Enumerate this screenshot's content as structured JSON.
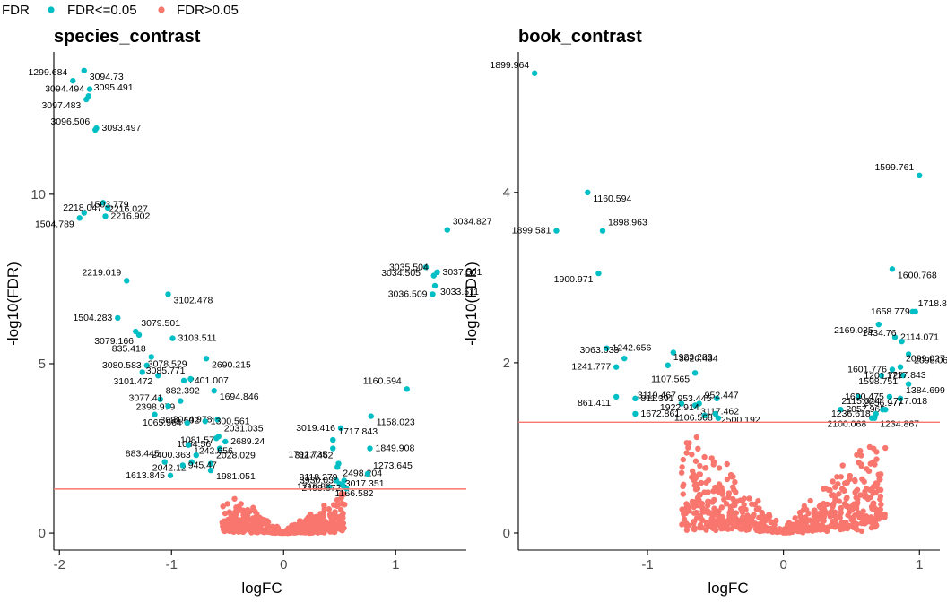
{
  "legend": {
    "title": "FDR",
    "items": [
      {
        "label": "FDR<=0.05",
        "color": "#00BFC4"
      },
      {
        "label": "FDR>0.05",
        "color": "#F8766D"
      }
    ]
  },
  "colors": {
    "sig": "#00BFC4",
    "nonsig": "#F8766D",
    "threshold": "#F8766D"
  },
  "chart_data": [
    {
      "type": "scatter",
      "title": "species_contrast",
      "xlabel": "logFC",
      "ylabel": "-log10(FDR)",
      "xlim": [
        -2.05,
        1.63
      ],
      "ylim": [
        -0.5,
        14.2
      ],
      "xticks": [
        -2,
        -1,
        0,
        1
      ],
      "yticks": [
        0,
        5,
        10
      ],
      "threshold_y": 1.301,
      "points": [
        {
          "x": -1.88,
          "y": 13.35,
          "label": "1299.684"
        },
        {
          "x": -1.78,
          "y": 13.65,
          "label": "3094.73"
        },
        {
          "x": -1.73,
          "y": 13.1,
          "label": "3094.494"
        },
        {
          "x": -1.74,
          "y": 12.9,
          "label": "3095.491"
        },
        {
          "x": -1.76,
          "y": 12.8,
          "label": "3097.483"
        },
        {
          "x": -1.67,
          "y": 11.95,
          "label": "3093.497"
        },
        {
          "x": -1.68,
          "y": 11.9,
          "label": "3096.506"
        },
        {
          "x": -1.61,
          "y": 9.75,
          "label": "2216.027"
        },
        {
          "x": -1.57,
          "y": 9.6,
          "label": "2218.047"
        },
        {
          "x": -1.78,
          "y": 9.45,
          "label": "1503.779"
        },
        {
          "x": -1.82,
          "y": 9.3,
          "label": "1504.789"
        },
        {
          "x": -1.59,
          "y": 9.35,
          "label": "2216.902"
        },
        {
          "x": -1.4,
          "y": 7.45,
          "label": "2219.019"
        },
        {
          "x": -1.03,
          "y": 7.05,
          "label": "3102.478"
        },
        {
          "x": -1.48,
          "y": 6.35,
          "label": "1504.283"
        },
        {
          "x": -1.32,
          "y": 5.95,
          "label": "3079.501"
        },
        {
          "x": -1.29,
          "y": 5.85,
          "label": "3079.166"
        },
        {
          "x": -0.99,
          "y": 5.75,
          "label": "3103.511"
        },
        {
          "x": -1.18,
          "y": 5.2,
          "label": "835.418"
        },
        {
          "x": -0.69,
          "y": 5.15,
          "label": "2690.215"
        },
        {
          "x": -1.22,
          "y": 4.95,
          "label": "3080.583"
        },
        {
          "x": -1.26,
          "y": 4.75,
          "label": "3078.529"
        },
        {
          "x": -1.12,
          "y": 4.65,
          "label": "3101.472"
        },
        {
          "x": -0.89,
          "y": 4.5,
          "label": "2401.007"
        },
        {
          "x": -0.83,
          "y": 4.55,
          "label": "3085.771"
        },
        {
          "x": -0.62,
          "y": 4.2,
          "label": "1694.846"
        },
        {
          "x": -0.59,
          "y": 3.35,
          "label": "3044.978"
        },
        {
          "x": -1.1,
          "y": 3.95,
          "label": "882.392"
        },
        {
          "x": -0.92,
          "y": 3.9,
          "label": "2398.979"
        },
        {
          "x": -0.7,
          "y": 3.3,
          "label": "1300.561"
        },
        {
          "x": -1.03,
          "y": 3.75,
          "label": "3077.41"
        },
        {
          "x": -1.15,
          "y": 3.5,
          "label": "3081.502"
        },
        {
          "x": -0.86,
          "y": 3.25,
          "label": "1065.564"
        },
        {
          "x": -0.58,
          "y": 2.85,
          "label": "2031.035"
        },
        {
          "x": -0.6,
          "y": 2.8,
          "label": "1064.56"
        },
        {
          "x": -0.52,
          "y": 2.7,
          "label": "2689.24"
        },
        {
          "x": -0.57,
          "y": 2.5,
          "label": "1081.57"
        },
        {
          "x": -0.85,
          "y": 2.6,
          "label": "1242.656"
        },
        {
          "x": -0.78,
          "y": 2.3,
          "label": "2400.363"
        },
        {
          "x": -0.65,
          "y": 2.05,
          "label": "2028.029"
        },
        {
          "x": -0.82,
          "y": 2.1,
          "label": "2042.12"
        },
        {
          "x": -0.9,
          "y": 2.0,
          "label": "945.47"
        },
        {
          "x": -1.06,
          "y": 2.1,
          "label": "883.445"
        },
        {
          "x": -0.65,
          "y": 1.85,
          "label": "1981.051"
        },
        {
          "x": -1.01,
          "y": 1.7,
          "label": "1613.845"
        },
        {
          "x": 1.1,
          "y": 4.25,
          "label": "1160.594"
        },
        {
          "x": 0.78,
          "y": 3.45,
          "label": "1158.023"
        },
        {
          "x": 0.51,
          "y": 3.1,
          "label": "3019.416"
        },
        {
          "x": 0.44,
          "y": 2.75,
          "label": "1717.843"
        },
        {
          "x": 0.44,
          "y": 2.5,
          "label": "1792.735"
        },
        {
          "x": 0.77,
          "y": 2.5,
          "label": "1849.908"
        },
        {
          "x": 0.49,
          "y": 2.05,
          "label": "3117.462"
        },
        {
          "x": 0.48,
          "y": 1.95,
          "label": "2498.204"
        },
        {
          "x": 0.54,
          "y": 1.55,
          "label": "3930.035"
        },
        {
          "x": 0.75,
          "y": 1.75,
          "label": "1273.645"
        },
        {
          "x": 0.47,
          "y": 1.55,
          "label": "1718.82"
        },
        {
          "x": 0.5,
          "y": 1.45,
          "label": "3017.351"
        },
        {
          "x": 0.53,
          "y": 1.4,
          "label": "3118.279"
        },
        {
          "x": 0.41,
          "y": 1.35,
          "label": "1166.582"
        },
        {
          "x": 0.56,
          "y": 1.32,
          "label": "2499.672"
        },
        {
          "x": 1.46,
          "y": 8.95,
          "label": "3034.827"
        },
        {
          "x": 1.27,
          "y": 7.85,
          "label": "3034.505"
        },
        {
          "x": 1.37,
          "y": 7.7,
          "label": "3037.501"
        },
        {
          "x": 1.34,
          "y": 7.6,
          "label": "3035.504"
        },
        {
          "x": 1.35,
          "y": 7.3,
          "label": "3033.511"
        },
        {
          "x": 1.33,
          "y": 7.05,
          "label": "3036.509"
        }
      ]
    },
    {
      "type": "scatter",
      "title": "book_contrast",
      "xlabel": "logFC",
      "ylabel": "-log10(FDR)",
      "xlim": [
        -1.95,
        1.15
      ],
      "ylim": [
        -0.2,
        5.65
      ],
      "xticks": [
        -1,
        0,
        1
      ],
      "yticks": [
        0,
        2,
        4
      ],
      "threshold_y": 1.301,
      "points": [
        {
          "x": -1.83,
          "y": 5.4,
          "label": "1899.964"
        },
        {
          "x": -1.44,
          "y": 4.0,
          "label": "1160.594"
        },
        {
          "x": -1.67,
          "y": 3.55,
          "label": "1899.581"
        },
        {
          "x": -1.33,
          "y": 3.55,
          "label": "1898.963"
        },
        {
          "x": -1.36,
          "y": 3.05,
          "label": "1900.971"
        },
        {
          "x": -1.3,
          "y": 2.17,
          "label": "1242.656"
        },
        {
          "x": -1.17,
          "y": 2.05,
          "label": "3063.033"
        },
        {
          "x": -0.81,
          "y": 2.12,
          "label": "3020.434"
        },
        {
          "x": -1.23,
          "y": 1.95,
          "label": "1241.777"
        },
        {
          "x": -0.85,
          "y": 1.97,
          "label": "1923.283"
        },
        {
          "x": -0.65,
          "y": 1.88,
          "label": "1107.565"
        },
        {
          "x": -1.09,
          "y": 1.58,
          "label": "811.391"
        },
        {
          "x": -0.75,
          "y": 1.52,
          "label": "3119.467"
        },
        {
          "x": -0.65,
          "y": 1.5,
          "label": "3117.462"
        },
        {
          "x": -0.49,
          "y": 1.58,
          "label": "953.445"
        },
        {
          "x": -0.62,
          "y": 1.52,
          "label": "952.447"
        },
        {
          "x": -1.23,
          "y": 1.6,
          "label": "861.411"
        },
        {
          "x": -1.09,
          "y": 1.4,
          "label": "1672.861"
        },
        {
          "x": -0.58,
          "y": 1.38,
          "label": "1922.914"
        },
        {
          "x": -0.5,
          "y": 1.4,
          "label": "2500.192"
        },
        {
          "x": -0.48,
          "y": 1.35,
          "label": "1106.568"
        },
        {
          "x": 1.0,
          "y": 4.2,
          "label": "1599.761"
        },
        {
          "x": 0.8,
          "y": 3.1,
          "label": "1600.768"
        },
        {
          "x": 0.97,
          "y": 2.6,
          "label": "1658.779"
        },
        {
          "x": 0.95,
          "y": 2.6,
          "label": "1718.82"
        },
        {
          "x": 0.7,
          "y": 2.45,
          "label": "2169.035"
        },
        {
          "x": 0.82,
          "y": 2.3,
          "label": "2114.071"
        },
        {
          "x": 0.87,
          "y": 2.25,
          "label": "1434.76"
        },
        {
          "x": 0.92,
          "y": 2.1,
          "label": "2098.062"
        },
        {
          "x": 0.8,
          "y": 1.92,
          "label": "1601.776"
        },
        {
          "x": 0.86,
          "y": 1.95,
          "label": "2099.027"
        },
        {
          "x": 0.88,
          "y": 1.85,
          "label": "1598.751"
        },
        {
          "x": 0.72,
          "y": 1.85,
          "label": "1717.843"
        },
        {
          "x": 0.92,
          "y": 1.75,
          "label": "1201.727"
        },
        {
          "x": 0.55,
          "y": 1.6,
          "label": "2056.977"
        },
        {
          "x": 0.78,
          "y": 1.6,
          "label": "1600.475"
        },
        {
          "x": 0.86,
          "y": 1.58,
          "label": "1384.699"
        },
        {
          "x": 0.65,
          "y": 1.35,
          "label": "2100.068"
        },
        {
          "x": 0.42,
          "y": 1.45,
          "label": "2057.965"
        },
        {
          "x": 0.75,
          "y": 1.45,
          "label": "2115.024"
        },
        {
          "x": 0.67,
          "y": 1.35,
          "label": "1234.867"
        },
        {
          "x": 0.68,
          "y": 1.4,
          "label": "1236.618"
        },
        {
          "x": 0.73,
          "y": 1.45,
          "label": "1717.018"
        }
      ]
    }
  ]
}
